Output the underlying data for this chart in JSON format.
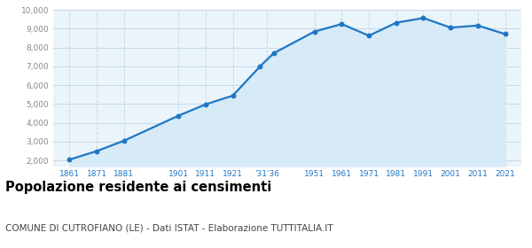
{
  "years": [
    1861,
    1871,
    1881,
    1901,
    1911,
    1921,
    1931,
    1936,
    1951,
    1961,
    1971,
    1981,
    1991,
    2001,
    2011,
    2021
  ],
  "population": [
    2050,
    2500,
    3050,
    4380,
    4980,
    5450,
    7000,
    7700,
    8850,
    9250,
    8630,
    9320,
    9570,
    9060,
    9170,
    8720
  ],
  "x_tick_labels": [
    "1861",
    "1871",
    "1881",
    "1901",
    "1911",
    "1921",
    "'31'36",
    "1951",
    "1961",
    "1971",
    "1981",
    "1991",
    "2001",
    "2011",
    "2021"
  ],
  "x_tick_positions": [
    1861,
    1871,
    1881,
    1901,
    1911,
    1921,
    1933.5,
    1951,
    1961,
    1971,
    1981,
    1991,
    2001,
    2011,
    2021
  ],
  "ylim_bottom": 1700,
  "ylim_top": 10000,
  "yticks": [
    2000,
    3000,
    4000,
    5000,
    6000,
    7000,
    8000,
    9000,
    10000
  ],
  "ytick_labels": [
    "2,000",
    "3,000",
    "4,000",
    "5,000",
    "6,000",
    "7,000",
    "8,000",
    "9,000",
    "10,000"
  ],
  "line_color": "#1f77c4",
  "fill_color": "#d6eaf8",
  "marker_color": "#1f77c4",
  "grid_color_h": "#c8d8e8",
  "grid_color_v": "#c8d8e8",
  "bg_color": "#eaf4fb",
  "title": "Popolazione residente ai censimenti",
  "subtitle": "COMUNE DI CUTROFIANO (LE) - Dati ISTAT - Elaborazione TUTTITALIA.IT",
  "title_fontsize": 10.5,
  "subtitle_fontsize": 7.5,
  "xlim_left": 1855,
  "xlim_right": 2027
}
